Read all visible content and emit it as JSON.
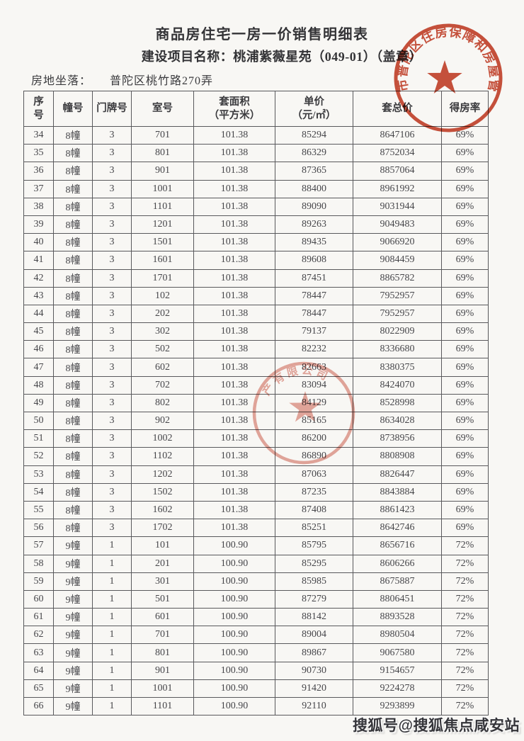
{
  "document": {
    "title": "商品房住宅一房一价销售明细表",
    "project_line": "建设项目名称：桃浦紫薇星苑（049-01）（盖章）",
    "location_label": "房地坐落：",
    "location_value": "普陀区桃竹路270弄"
  },
  "table": {
    "headers": [
      {
        "name": "serial",
        "lines": [
          "序",
          "号"
        ]
      },
      {
        "name": "building",
        "lines": [
          "幢号"
        ]
      },
      {
        "name": "door-no",
        "lines": [
          "门牌号"
        ]
      },
      {
        "name": "room",
        "lines": [
          "室号"
        ]
      },
      {
        "name": "area",
        "lines": [
          "套面积",
          "（平方米）"
        ]
      },
      {
        "name": "unit-price",
        "lines": [
          "单价",
          "（元/㎡）"
        ]
      },
      {
        "name": "total-price",
        "lines": [
          "套总价"
        ]
      },
      {
        "name": "efficiency",
        "lines": [
          "得房率"
        ]
      }
    ],
    "rows": [
      [
        "34",
        "8幢",
        "3",
        "701",
        "101.38",
        "85294",
        "8647106",
        "69%"
      ],
      [
        "35",
        "8幢",
        "3",
        "801",
        "101.38",
        "86329",
        "8752034",
        "69%"
      ],
      [
        "36",
        "8幢",
        "3",
        "901",
        "101.38",
        "87365",
        "8857064",
        "69%"
      ],
      [
        "37",
        "8幢",
        "3",
        "1001",
        "101.38",
        "88400",
        "8961992",
        "69%"
      ],
      [
        "38",
        "8幢",
        "3",
        "1101",
        "101.38",
        "89090",
        "9031944",
        "69%"
      ],
      [
        "39",
        "8幢",
        "3",
        "1201",
        "101.38",
        "89263",
        "9049483",
        "69%"
      ],
      [
        "40",
        "8幢",
        "3",
        "1501",
        "101.38",
        "89435",
        "9066920",
        "69%"
      ],
      [
        "41",
        "8幢",
        "3",
        "1601",
        "101.38",
        "89608",
        "9084459",
        "69%"
      ],
      [
        "42",
        "8幢",
        "3",
        "1701",
        "101.38",
        "87451",
        "8865782",
        "69%"
      ],
      [
        "43",
        "8幢",
        "3",
        "102",
        "101.38",
        "78447",
        "7952957",
        "69%"
      ],
      [
        "44",
        "8幢",
        "3",
        "202",
        "101.38",
        "78447",
        "7952957",
        "69%"
      ],
      [
        "45",
        "8幢",
        "3",
        "302",
        "101.38",
        "79137",
        "8022909",
        "69%"
      ],
      [
        "46",
        "8幢",
        "3",
        "502",
        "101.38",
        "82232",
        "8336680",
        "69%"
      ],
      [
        "47",
        "8幢",
        "3",
        "602",
        "101.38",
        "82663",
        "8380375",
        "69%"
      ],
      [
        "48",
        "8幢",
        "3",
        "702",
        "101.38",
        "83094",
        "8424070",
        "69%"
      ],
      [
        "49",
        "8幢",
        "3",
        "802",
        "101.38",
        "84129",
        "8528998",
        "69%"
      ],
      [
        "50",
        "8幢",
        "3",
        "902",
        "101.38",
        "85165",
        "8634028",
        "69%"
      ],
      [
        "51",
        "8幢",
        "3",
        "1002",
        "101.38",
        "86200",
        "8738956",
        "69%"
      ],
      [
        "52",
        "8幢",
        "3",
        "1102",
        "101.38",
        "86890",
        "8808908",
        "69%"
      ],
      [
        "53",
        "8幢",
        "3",
        "1202",
        "101.38",
        "87063",
        "8826447",
        "69%"
      ],
      [
        "54",
        "8幢",
        "3",
        "1502",
        "101.38",
        "87235",
        "8843884",
        "69%"
      ],
      [
        "55",
        "8幢",
        "3",
        "1602",
        "101.38",
        "87408",
        "8861423",
        "69%"
      ],
      [
        "56",
        "8幢",
        "3",
        "1702",
        "101.38",
        "85251",
        "8642746",
        "69%"
      ],
      [
        "57",
        "9幢",
        "1",
        "101",
        "100.90",
        "85795",
        "8656716",
        "72%"
      ],
      [
        "58",
        "9幢",
        "1",
        "201",
        "100.90",
        "85295",
        "8606266",
        "72%"
      ],
      [
        "59",
        "9幢",
        "1",
        "301",
        "100.90",
        "85985",
        "8675887",
        "72%"
      ],
      [
        "60",
        "9幢",
        "1",
        "501",
        "100.90",
        "87279",
        "8806451",
        "72%"
      ],
      [
        "61",
        "9幢",
        "1",
        "601",
        "100.90",
        "88142",
        "8893528",
        "72%"
      ],
      [
        "62",
        "9幢",
        "1",
        "701",
        "100.90",
        "89004",
        "8980504",
        "72%"
      ],
      [
        "63",
        "9幢",
        "1",
        "801",
        "100.90",
        "89867",
        "9067580",
        "72%"
      ],
      [
        "64",
        "9幢",
        "1",
        "901",
        "100.90",
        "90730",
        "9154657",
        "72%"
      ],
      [
        "65",
        "9幢",
        "1",
        "1001",
        "100.90",
        "91420",
        "9224278",
        "72%"
      ],
      [
        "66",
        "9幢",
        "1",
        "1101",
        "100.90",
        "92110",
        "9293899",
        "72%"
      ]
    ]
  },
  "stamps": {
    "government_seal": {
      "arc_text": "上海市普陀区住房保障和房屋管理局",
      "color": "#c33a22"
    },
    "company_seal": {
      "arc_text": "产有限公司",
      "color": "#cd5240"
    }
  },
  "watermark": {
    "text": "搜狐号@搜狐焦点咸安站"
  }
}
